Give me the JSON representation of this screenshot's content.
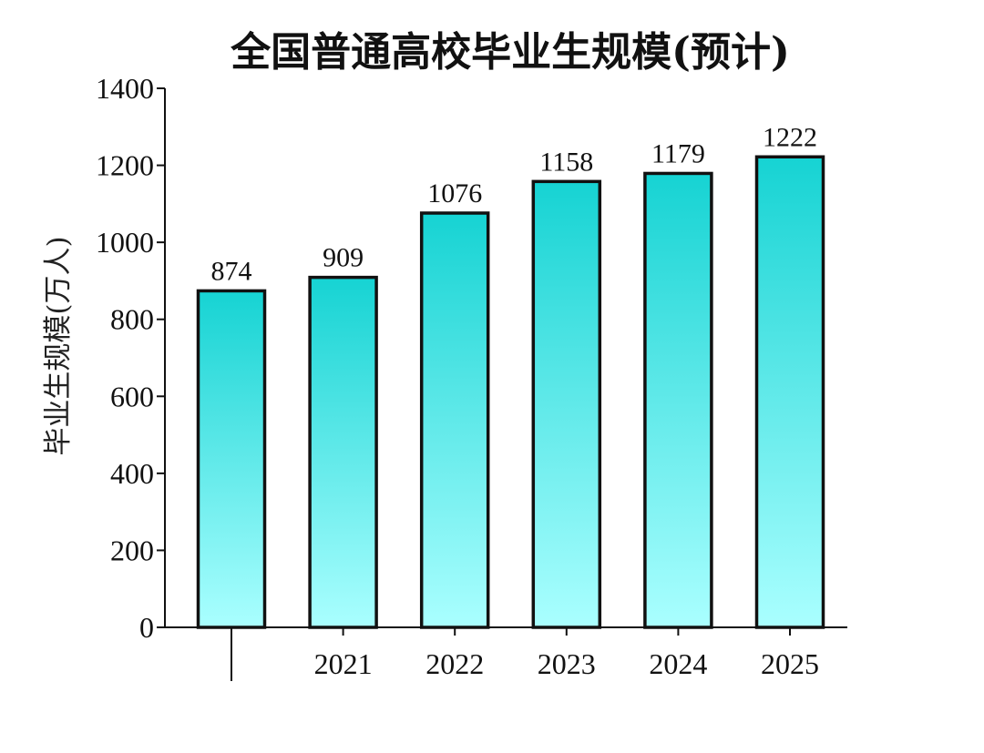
{
  "chart_data": {
    "type": "bar",
    "title": "全国普通高校毕业生规模(预计)",
    "ylabel": "毕业生规模(万人)",
    "xlabel": "",
    "categories": [
      "",
      "2021",
      "2022",
      "2023",
      "2024",
      "2025"
    ],
    "values": [
      874,
      909,
      1076,
      1158,
      1179,
      1222
    ],
    "ylim": [
      0,
      1400
    ],
    "yticks": [
      0,
      200,
      400,
      600,
      800,
      1000,
      1200,
      1400
    ],
    "grid": false,
    "legend": "none",
    "bar_color_top": "#16d3d3",
    "bar_color_bottom": "#aaffff",
    "bar_border_color": "#111111"
  }
}
